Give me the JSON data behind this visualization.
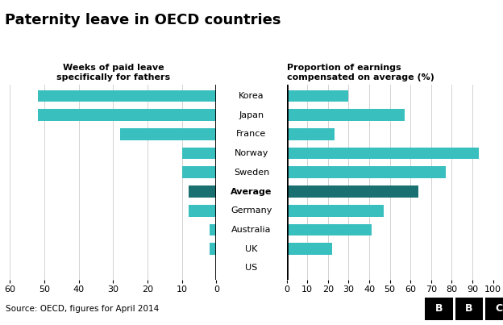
{
  "title": "Paternity leave in OECD countries",
  "left_subtitle": "Weeks of paid leave\nspecifically for fathers",
  "right_subtitle": "Proportion of earnings\ncompensated on average (%)",
  "countries": [
    "Korea",
    "Japan",
    "France",
    "Norway",
    "Sweden",
    "Average",
    "Germany",
    "Australia",
    "UK",
    "US"
  ],
  "weeks": [
    52,
    52,
    28,
    10,
    10,
    8,
    8,
    2,
    2,
    0
  ],
  "pct": [
    30,
    57,
    23,
    93,
    77,
    64,
    47,
    41,
    22,
    0
  ],
  "average_index": 5,
  "teal_color": "#3abfbf",
  "dark_teal_color": "#1a7070",
  "bg_color": "#ffffff",
  "footer_bg": "#d5d5d5",
  "source_text": "Source: OECD, figures for April 2014"
}
